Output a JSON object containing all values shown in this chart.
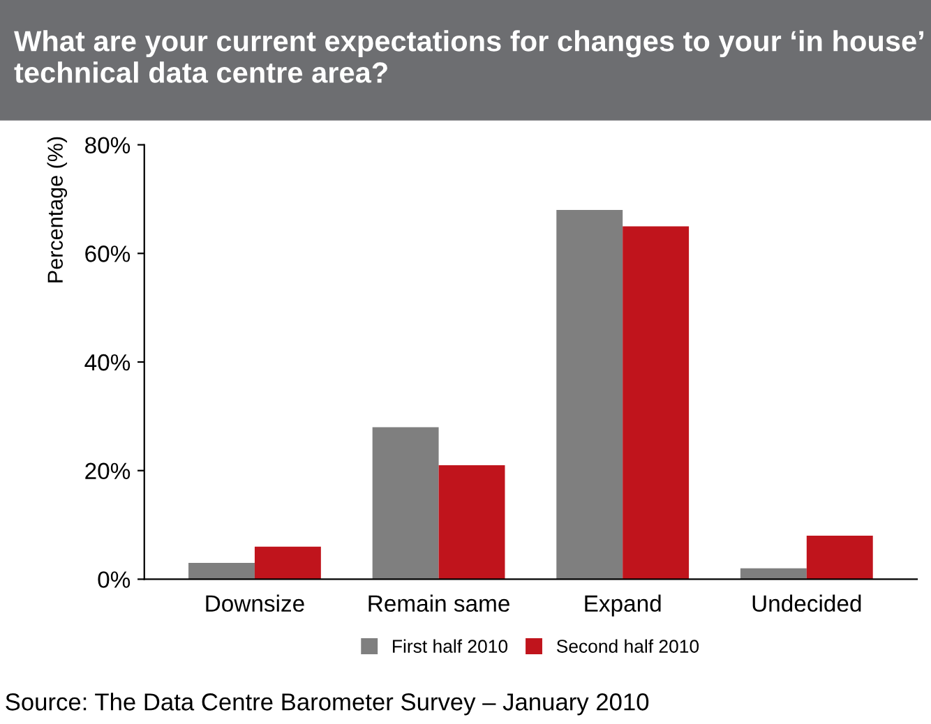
{
  "chart_data": {
    "type": "bar",
    "title": "What are your current expectations for changes to your ‘in house’ technical data centre area?",
    "ylabel": "Percentage (%)",
    "categories": [
      "Downsize",
      "Remain same",
      "Expand",
      "Undecided"
    ],
    "series": [
      {
        "name": "First half 2010",
        "color": "#7f7f7f",
        "values": [
          3,
          28,
          68,
          2
        ]
      },
      {
        "name": "Second half 2010",
        "color": "#c0141c",
        "values": [
          6,
          21,
          65,
          8
        ]
      }
    ],
    "ylim": [
      0,
      80
    ],
    "yticks": [
      {
        "value": 0,
        "label": "0%"
      },
      {
        "value": 20,
        "label": "20%"
      },
      {
        "value": 40,
        "label": "40%"
      },
      {
        "value": 60,
        "label": "60%"
      },
      {
        "value": 80,
        "label": "80%"
      }
    ],
    "grid": false,
    "legend": "bottom",
    "annotations": [
      "Source: The Data Centre Barometer Survey – January 2010"
    ]
  }
}
